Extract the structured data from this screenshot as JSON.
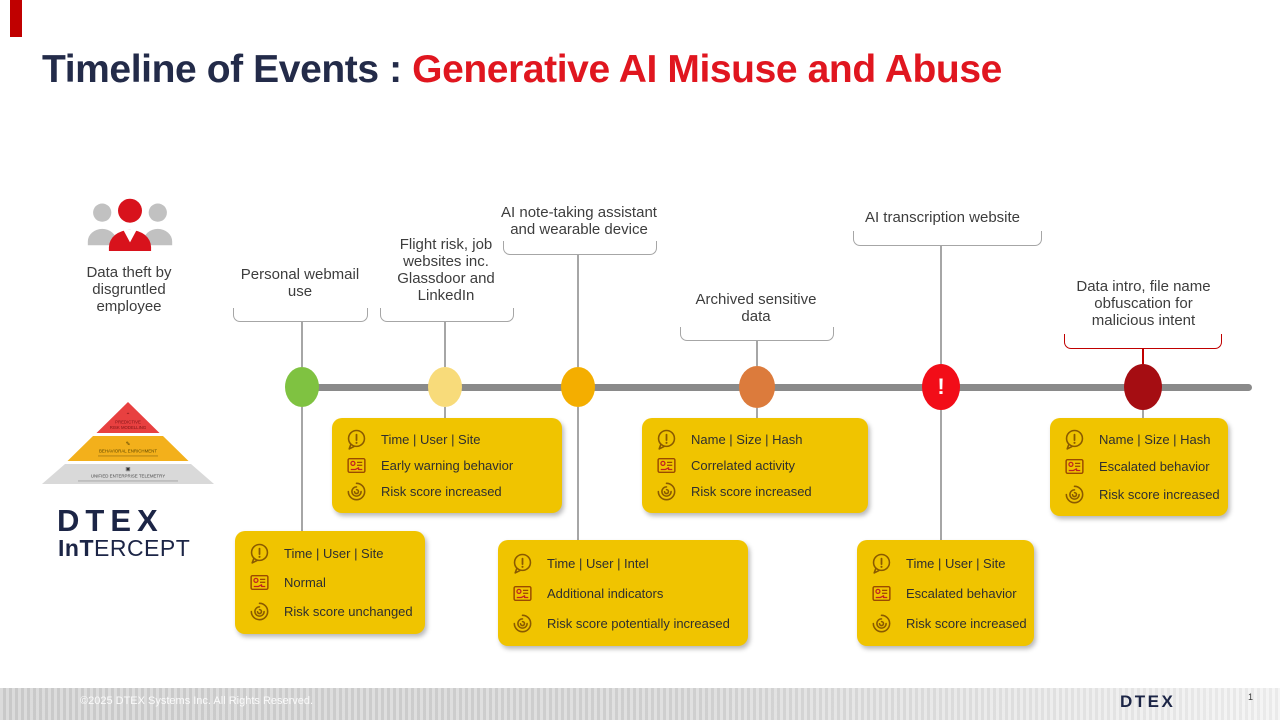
{
  "slide": {
    "title_prefix": "Timeline of Events : ",
    "title_highlight": "Generative AI Misuse and Abuse",
    "accent_color": "#C00000",
    "title_prefix_color": "#232B49",
    "title_highlight_color": "#E0161F"
  },
  "scenario": {
    "caption": "Data theft by disgruntled employee"
  },
  "brand": {
    "pyramid_tiers": [
      {
        "label": "PREDICTIVE",
        "label2": "RISK MODELLING",
        "icon_glyph": "⌃",
        "color": "#E84040"
      },
      {
        "label": "BEHAVIORAL ENRICHMENT",
        "icon_glyph": "✎",
        "color": "#F3B01B"
      },
      {
        "label": "UNIFIED ENTERPRISE TELEMETRY",
        "icon_glyph": "▣",
        "color": "#D9D9D9"
      }
    ],
    "logo_wordmark": "DTEX",
    "product_bold": "InT",
    "product_rest": "ERCEPT"
  },
  "timeline": {
    "line_color": "#8A8A8A",
    "bracket_color": "#A6A6A6",
    "alert_bracket_color": "#C00000",
    "events": [
      {
        "label": "Personal webmail use",
        "dot_color": "#7FC241"
      },
      {
        "label": "Flight risk, job websites inc. Glassdoor and LinkedIn",
        "dot_color": "#F8DB7A"
      },
      {
        "label": "AI note-taking assistant and wearable device",
        "dot_color": "#F4AE00"
      },
      {
        "label": "Archived sensitive data",
        "dot_color": "#DC7B3C"
      },
      {
        "label": "AI transcription website",
        "dot_color": "#F20D18",
        "alert_mark": "!"
      },
      {
        "label": "Data intro, file name obfuscation for malicious intent",
        "dot_color": "#A50D12",
        "red_bracket": true
      }
    ]
  },
  "callout_style": {
    "bg": "#F0C400",
    "text_color": "#2F2F2F"
  },
  "callouts": [
    {
      "rows": [
        {
          "icon": "chat-alert-icon",
          "text": "Time | User | Site"
        },
        {
          "icon": "behavior-report-icon",
          "text": "Normal"
        },
        {
          "icon": "risk-spiral-icon",
          "text": "Risk score unchanged"
        }
      ]
    },
    {
      "rows": [
        {
          "icon": "chat-alert-icon",
          "text": "Time | User | Site"
        },
        {
          "icon": "behavior-report-icon",
          "text": "Early warning behavior"
        },
        {
          "icon": "risk-spiral-icon",
          "text": "Risk score increased"
        }
      ]
    },
    {
      "rows": [
        {
          "icon": "chat-alert-icon",
          "text": "Time | User | Intel"
        },
        {
          "icon": "behavior-report-icon",
          "text": "Additional indicators"
        },
        {
          "icon": "risk-spiral-icon",
          "text": "Risk score potentially increased"
        }
      ]
    },
    {
      "rows": [
        {
          "icon": "chat-alert-icon",
          "text": "Name | Size | Hash"
        },
        {
          "icon": "behavior-report-icon",
          "text": "Correlated activity"
        },
        {
          "icon": "risk-spiral-icon",
          "text": "Risk score increased"
        }
      ]
    },
    {
      "rows": [
        {
          "icon": "chat-alert-icon",
          "text": "Time | User | Site"
        },
        {
          "icon": "behavior-report-icon",
          "text": "Escalated behavior"
        },
        {
          "icon": "risk-spiral-icon",
          "text": "Risk score increased"
        }
      ]
    },
    {
      "rows": [
        {
          "icon": "chat-alert-icon",
          "text": "Name | Size | Hash"
        },
        {
          "icon": "behavior-report-icon",
          "text": "Escalated behavior"
        },
        {
          "icon": "risk-spiral-icon",
          "text": "Risk score increased"
        }
      ]
    }
  ],
  "footer": {
    "copyright": "©2025 DTEX Systems Inc. All Rights Reserved.",
    "logo": "DTEX",
    "page_number": "1"
  }
}
